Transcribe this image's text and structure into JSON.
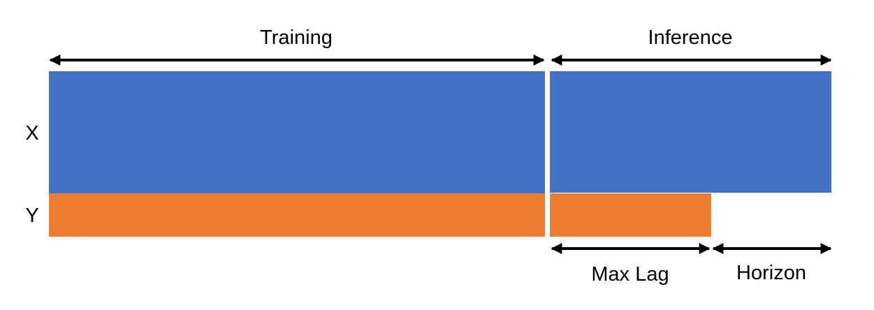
{
  "labels": {
    "training": "Training",
    "inference": "Inference",
    "x_row": "X",
    "y_row": "Y",
    "max_lag": "Max Lag",
    "horizon": "Horizon"
  },
  "colors": {
    "x_block": "#4472C4",
    "y_block": "#ED7D31",
    "arrow": "#000000",
    "background": "#FFFFFF"
  }
}
